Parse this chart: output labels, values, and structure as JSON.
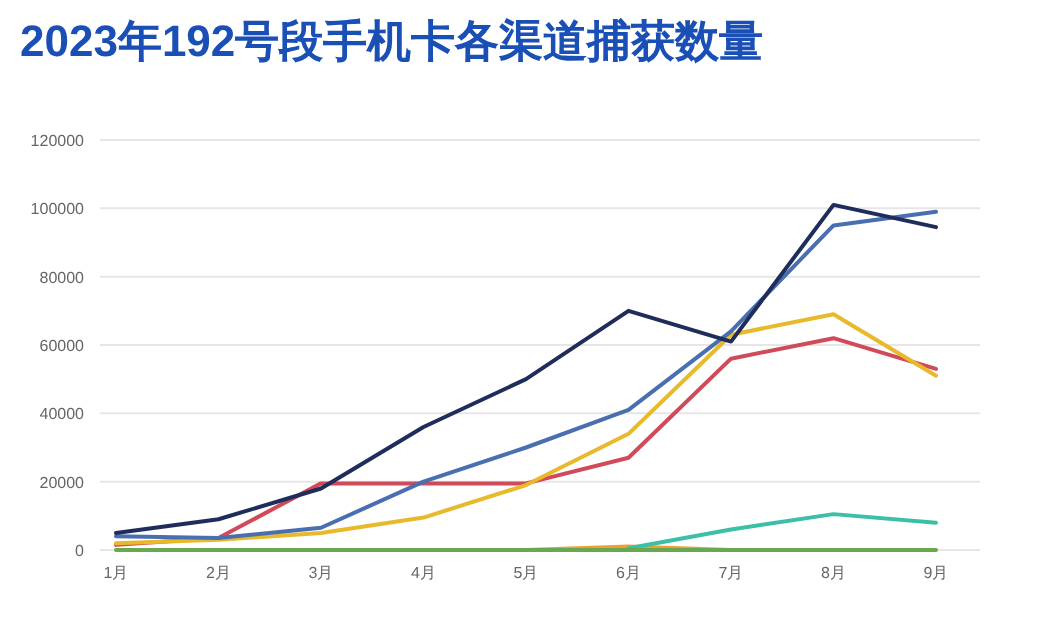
{
  "chart_data": {
    "type": "line",
    "title": "2023年192号段手机卡各渠道捕获数量",
    "categories": [
      "1月",
      "2月",
      "3月",
      "4月",
      "5月",
      "6月",
      "7月",
      "8月",
      "9月"
    ],
    "series": [
      {
        "color": "#f0a030",
        "values": [
          null,
          null,
          null,
          null,
          0,
          1000,
          0,
          null,
          null
        ]
      },
      {
        "color": "#3bbfa8",
        "values": [
          null,
          null,
          null,
          null,
          null,
          500,
          6000,
          10500,
          8000
        ]
      },
      {
        "color": "#d04a5a",
        "values": [
          1500,
          3500,
          19500,
          19500,
          19500,
          27000,
          56000,
          62000,
          53000
        ]
      },
      {
        "color": "#e8b92a",
        "values": [
          2000,
          3000,
          5000,
          9500,
          19000,
          34000,
          63000,
          69000,
          51000
        ]
      },
      {
        "color": "#4a6fb0",
        "values": [
          4000,
          3500,
          6500,
          20000,
          30000,
          41000,
          64000,
          95000,
          99000
        ]
      },
      {
        "color": "#1f2d5c",
        "values": [
          5000,
          9000,
          18000,
          36000,
          50000,
          70000,
          61000,
          101000,
          94500
        ]
      },
      {
        "color": "#6aa84f",
        "values": [
          0,
          0,
          0,
          0,
          0,
          0,
          0,
          0,
          0
        ]
      }
    ],
    "ylim": [
      0,
      120000
    ],
    "yticks": [
      0,
      20000,
      40000,
      60000,
      80000,
      100000,
      120000
    ],
    "grid": "y",
    "marker": "none",
    "line_style": "solid"
  }
}
